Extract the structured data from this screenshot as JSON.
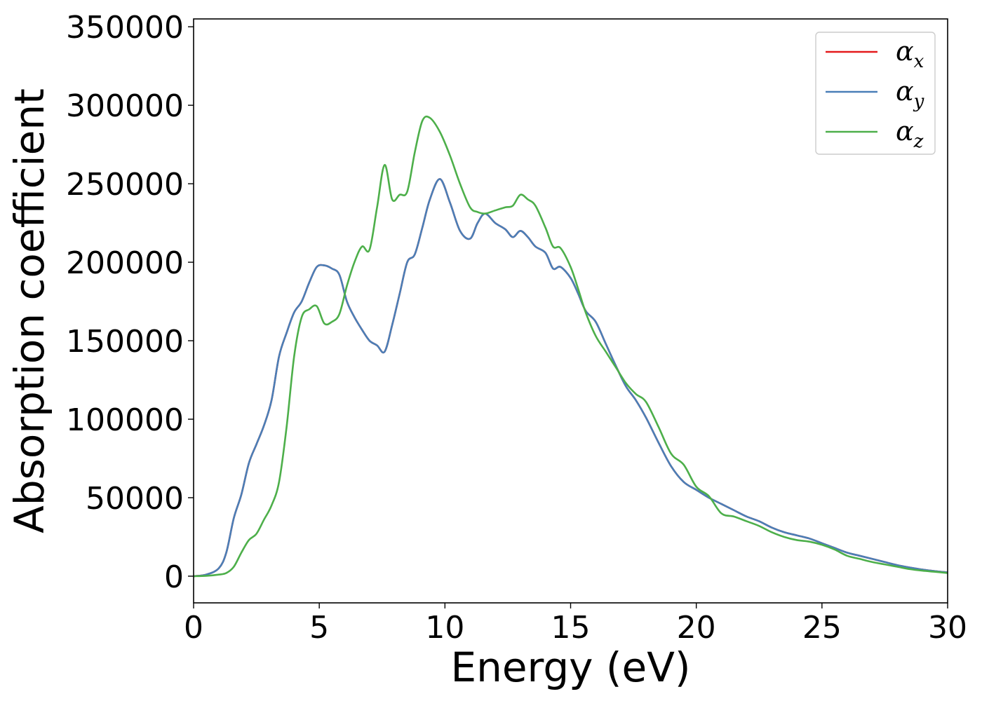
{
  "chart_data": {
    "type": "line",
    "title": "",
    "xlabel": "Energy (eV)",
    "ylabel": "Absorption coefficient",
    "xlim": [
      0,
      30
    ],
    "ylim": [
      -17000,
      355000
    ],
    "xticks": [
      0,
      5,
      10,
      15,
      20,
      25,
      30
    ],
    "yticks": [
      0,
      50000,
      100000,
      150000,
      200000,
      250000,
      300000,
      350000
    ],
    "grid": false,
    "legend_position": "top-right",
    "series": [
      {
        "name": "αx",
        "legend_symbol": "α",
        "legend_subscript": "x",
        "color": "#e41a1c",
        "x": [
          0,
          0.5,
          1.0,
          1.3,
          1.6,
          1.9,
          2.2,
          2.5,
          2.8,
          3.1,
          3.4,
          3.7,
          4.0,
          4.3,
          4.6,
          4.9,
          5.2,
          5.5,
          5.8,
          6.1,
          6.4,
          6.7,
          7.0,
          7.3,
          7.6,
          7.9,
          8.2,
          8.5,
          8.8,
          9.1,
          9.4,
          9.8,
          10.2,
          10.6,
          11.0,
          11.3,
          11.6,
          12.0,
          12.4,
          12.7,
          13.0,
          13.3,
          13.6,
          14.0,
          14.3,
          14.6,
          15.0,
          15.3,
          15.6,
          16.0,
          16.4,
          16.8,
          17.2,
          17.6,
          18.0,
          18.5,
          19.0,
          19.5,
          20.0,
          20.5,
          21.0,
          21.5,
          22.0,
          22.5,
          23.0,
          23.5,
          24.0,
          24.5,
          25.0,
          25.5,
          26.0,
          26.5,
          27.0,
          27.5,
          28.0,
          28.5,
          29.0,
          29.5,
          30.0
        ],
        "values": [
          0,
          1000,
          5000,
          15000,
          37000,
          52000,
          72000,
          84000,
          96000,
          112000,
          140000,
          155000,
          168000,
          175000,
          187000,
          197000,
          198000,
          196000,
          192000,
          175000,
          165000,
          157000,
          150000,
          147000,
          143000,
          160000,
          180000,
          200000,
          205000,
          222000,
          240000,
          253000,
          238000,
          220000,
          215000,
          225000,
          231000,
          225000,
          221000,
          216000,
          220000,
          216000,
          210000,
          206000,
          196000,
          197000,
          190000,
          180000,
          169000,
          162000,
          148000,
          134000,
          121000,
          112000,
          101000,
          85000,
          70000,
          60000,
          55000,
          50000,
          46000,
          42000,
          38000,
          35000,
          31000,
          28000,
          26000,
          24000,
          21000,
          18000,
          15000,
          13000,
          11000,
          9000,
          7000,
          5500,
          4200,
          3200,
          2400
        ]
      },
      {
        "name": "αy",
        "legend_symbol": "α",
        "legend_subscript": "y",
        "color": "#4a7fb7",
        "x": [
          0,
          0.5,
          1.0,
          1.3,
          1.6,
          1.9,
          2.2,
          2.5,
          2.8,
          3.1,
          3.4,
          3.7,
          4.0,
          4.3,
          4.6,
          4.9,
          5.2,
          5.5,
          5.8,
          6.1,
          6.4,
          6.7,
          7.0,
          7.3,
          7.6,
          7.9,
          8.2,
          8.5,
          8.8,
          9.1,
          9.4,
          9.8,
          10.2,
          10.6,
          11.0,
          11.3,
          11.6,
          12.0,
          12.4,
          12.7,
          13.0,
          13.3,
          13.6,
          14.0,
          14.3,
          14.6,
          15.0,
          15.3,
          15.6,
          16.0,
          16.4,
          16.8,
          17.2,
          17.6,
          18.0,
          18.5,
          19.0,
          19.5,
          20.0,
          20.5,
          21.0,
          21.5,
          22.0,
          22.5,
          23.0,
          23.5,
          24.0,
          24.5,
          25.0,
          25.5,
          26.0,
          26.5,
          27.0,
          27.5,
          28.0,
          28.5,
          29.0,
          29.5,
          30.0
        ],
        "values": [
          0,
          1000,
          5000,
          15000,
          37000,
          52000,
          72000,
          84000,
          96000,
          112000,
          140000,
          155000,
          168000,
          175000,
          187000,
          197000,
          198000,
          196000,
          192000,
          175000,
          165000,
          157000,
          150000,
          147000,
          143000,
          160000,
          180000,
          200000,
          205000,
          222000,
          240000,
          253000,
          238000,
          220000,
          215000,
          225000,
          231000,
          225000,
          221000,
          216000,
          220000,
          216000,
          210000,
          206000,
          196000,
          197000,
          190000,
          180000,
          169000,
          162000,
          148000,
          134000,
          121000,
          112000,
          101000,
          85000,
          70000,
          60000,
          55000,
          50000,
          46000,
          42000,
          38000,
          35000,
          31000,
          28000,
          26000,
          24000,
          21000,
          18000,
          15000,
          13000,
          11000,
          9000,
          7000,
          5500,
          4200,
          3200,
          2400
        ]
      },
      {
        "name": "αz",
        "legend_symbol": "α",
        "legend_subscript": "z",
        "color": "#4daf4a",
        "x": [
          0,
          0.5,
          1.0,
          1.3,
          1.6,
          1.9,
          2.2,
          2.5,
          2.8,
          3.1,
          3.4,
          3.7,
          4.0,
          4.3,
          4.6,
          4.9,
          5.2,
          5.5,
          5.8,
          6.1,
          6.4,
          6.7,
          7.0,
          7.3,
          7.6,
          7.9,
          8.2,
          8.5,
          8.8,
          9.1,
          9.4,
          9.8,
          10.2,
          10.6,
          11.0,
          11.3,
          11.6,
          12.0,
          12.4,
          12.7,
          13.0,
          13.3,
          13.6,
          14.0,
          14.3,
          14.6,
          15.0,
          15.3,
          15.6,
          16.0,
          16.4,
          16.8,
          17.2,
          17.6,
          18.0,
          18.5,
          19.0,
          19.5,
          20.0,
          20.5,
          21.0,
          21.5,
          22.0,
          22.5,
          23.0,
          23.5,
          24.0,
          24.5,
          25.0,
          25.5,
          26.0,
          26.5,
          27.0,
          27.5,
          28.0,
          28.5,
          29.0,
          29.5,
          30.0
        ],
        "values": [
          0,
          200,
          1000,
          2000,
          6000,
          15000,
          23000,
          27000,
          36000,
          45000,
          60000,
          95000,
          140000,
          165000,
          170000,
          172000,
          161000,
          162000,
          167000,
          185000,
          200000,
          210000,
          208000,
          235000,
          262000,
          240000,
          243000,
          245000,
          270000,
          290000,
          292000,
          283000,
          268000,
          250000,
          235000,
          232000,
          231000,
          233000,
          235000,
          236000,
          243000,
          240000,
          236000,
          222000,
          210000,
          209000,
          197000,
          183000,
          168000,
          153000,
          143000,
          133000,
          123000,
          116000,
          111000,
          95000,
          78000,
          71000,
          57000,
          51000,
          40000,
          38000,
          35000,
          32000,
          28000,
          25000,
          23000,
          22000,
          20000,
          17000,
          13000,
          11000,
          9000,
          7500,
          6000,
          4500,
          3500,
          2800,
          2000
        ]
      }
    ]
  }
}
